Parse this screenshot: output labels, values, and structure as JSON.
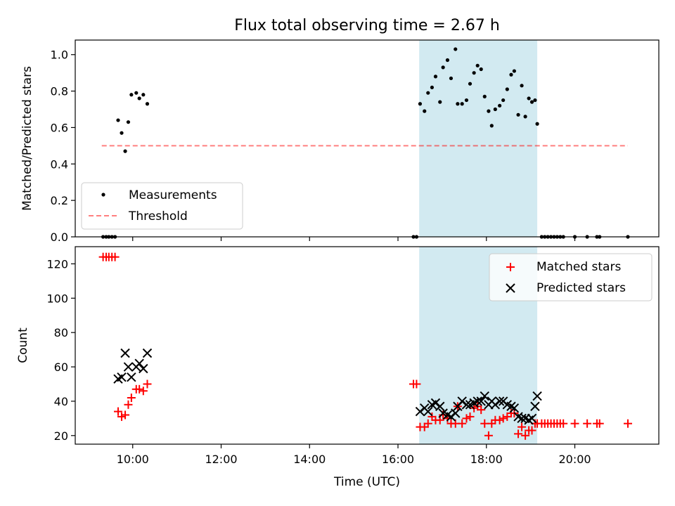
{
  "title": "Flux total observing time = 2.67 h",
  "x_axis_label": "Time (UTC)",
  "x_ticks": [
    "10:00",
    "12:00",
    "14:00",
    "16:00",
    "18:00",
    "20:00"
  ],
  "colors": {
    "shade": "#add8e6",
    "threshold": "#ff0000",
    "matched": "#ff0000",
    "predicted": "#000000",
    "measurement": "#000000"
  },
  "chart_data": [
    {
      "type": "scatter",
      "ylabel": "Matched/Predicted stars",
      "xlim": [
        8.7,
        21.9
      ],
      "ylim": [
        0,
        1.08
      ],
      "yticks": [
        "0.0",
        "0.2",
        "0.4",
        "0.6",
        "0.8",
        "1.0"
      ],
      "shaded_region": [
        16.48,
        19.15
      ],
      "legend": {
        "position": "lower-left",
        "entries": [
          "Measurements",
          "Threshold"
        ]
      },
      "threshold": {
        "name": "Threshold",
        "y": 0.5,
        "x": [
          9.3,
          21.2
        ]
      },
      "series": [
        {
          "name": "Measurements",
          "points": [
            [
              9.33,
              0.0
            ],
            [
              9.4,
              0.0
            ],
            [
              9.46,
              0.0
            ],
            [
              9.53,
              0.0
            ],
            [
              9.6,
              0.0
            ],
            [
              9.67,
              0.64
            ],
            [
              9.75,
              0.57
            ],
            [
              9.83,
              0.47
            ],
            [
              9.9,
              0.63
            ],
            [
              9.97,
              0.78
            ],
            [
              10.08,
              0.79
            ],
            [
              10.15,
              0.76
            ],
            [
              10.24,
              0.78
            ],
            [
              10.33,
              0.73
            ],
            [
              16.35,
              0.0
            ],
            [
              16.42,
              0.0
            ],
            [
              16.5,
              0.73
            ],
            [
              16.6,
              0.69
            ],
            [
              16.68,
              0.79
            ],
            [
              16.77,
              0.82
            ],
            [
              16.85,
              0.88
            ],
            [
              16.95,
              0.74
            ],
            [
              17.02,
              0.93
            ],
            [
              17.12,
              0.97
            ],
            [
              17.2,
              0.87
            ],
            [
              17.3,
              1.03
            ],
            [
              17.35,
              0.73
            ],
            [
              17.45,
              0.73
            ],
            [
              17.55,
              0.75
            ],
            [
              17.63,
              0.84
            ],
            [
              17.72,
              0.9
            ],
            [
              17.8,
              0.94
            ],
            [
              17.88,
              0.92
            ],
            [
              17.96,
              0.77
            ],
            [
              18.05,
              0.69
            ],
            [
              18.12,
              0.61
            ],
            [
              18.2,
              0.7
            ],
            [
              18.3,
              0.72
            ],
            [
              18.38,
              0.75
            ],
            [
              18.47,
              0.81
            ],
            [
              18.56,
              0.89
            ],
            [
              18.63,
              0.91
            ],
            [
              18.72,
              0.67
            ],
            [
              18.8,
              0.83
            ],
            [
              18.88,
              0.66
            ],
            [
              18.96,
              0.76
            ],
            [
              19.03,
              0.74
            ],
            [
              19.1,
              0.75
            ],
            [
              19.15,
              0.62
            ],
            [
              19.25,
              0.0
            ],
            [
              19.32,
              0.0
            ],
            [
              19.39,
              0.0
            ],
            [
              19.46,
              0.0
            ],
            [
              19.53,
              0.0
            ],
            [
              19.6,
              0.0
            ],
            [
              19.67,
              0.0
            ],
            [
              19.74,
              0.0
            ],
            [
              20.0,
              0.0
            ],
            [
              20.28,
              0.0
            ],
            [
              20.5,
              0.0
            ],
            [
              20.56,
              0.0
            ],
            [
              21.2,
              0.0
            ]
          ]
        }
      ]
    },
    {
      "type": "scatter",
      "ylabel": "Count",
      "xlim": [
        8.7,
        21.9
      ],
      "ylim": [
        15,
        130
      ],
      "yticks": [
        "20",
        "40",
        "60",
        "80",
        "100",
        "120"
      ],
      "shaded_region": [
        16.48,
        19.15
      ],
      "legend": {
        "position": "top-right",
        "entries": [
          "Matched stars",
          "Predicted stars"
        ]
      },
      "series": [
        {
          "name": "Matched stars",
          "points": [
            [
              9.33,
              124
            ],
            [
              9.4,
              124
            ],
            [
              9.46,
              124
            ],
            [
              9.53,
              124
            ],
            [
              9.6,
              124
            ],
            [
              9.67,
              34
            ],
            [
              9.75,
              31
            ],
            [
              9.83,
              32
            ],
            [
              9.9,
              38
            ],
            [
              9.97,
              42
            ],
            [
              10.08,
              47
            ],
            [
              10.15,
              47
            ],
            [
              10.24,
              46
            ],
            [
              10.33,
              50
            ],
            [
              16.35,
              50
            ],
            [
              16.42,
              50
            ],
            [
              16.5,
              25
            ],
            [
              16.6,
              25
            ],
            [
              16.68,
              27
            ],
            [
              16.77,
              31
            ],
            [
              16.85,
              29
            ],
            [
              16.95,
              29
            ],
            [
              17.02,
              32
            ],
            [
              17.12,
              30
            ],
            [
              17.2,
              27
            ],
            [
              17.3,
              27
            ],
            [
              17.35,
              37
            ],
            [
              17.45,
              27
            ],
            [
              17.55,
              30
            ],
            [
              17.63,
              31
            ],
            [
              17.72,
              36
            ],
            [
              17.8,
              37
            ],
            [
              17.88,
              35
            ],
            [
              17.96,
              27
            ],
            [
              18.05,
              20
            ],
            [
              18.12,
              27
            ],
            [
              18.2,
              29
            ],
            [
              18.3,
              29
            ],
            [
              18.38,
              30
            ],
            [
              18.47,
              31
            ],
            [
              18.56,
              33
            ],
            [
              18.63,
              33
            ],
            [
              18.72,
              21
            ],
            [
              18.8,
              25
            ],
            [
              18.88,
              20
            ],
            [
              18.96,
              23
            ],
            [
              19.03,
              23
            ],
            [
              19.1,
              27
            ],
            [
              19.15,
              27
            ],
            [
              19.25,
              27
            ],
            [
              19.32,
              27
            ],
            [
              19.39,
              27
            ],
            [
              19.46,
              27
            ],
            [
              19.53,
              27
            ],
            [
              19.6,
              27
            ],
            [
              19.67,
              27
            ],
            [
              19.74,
              27
            ],
            [
              20.0,
              27
            ],
            [
              20.28,
              27
            ],
            [
              20.5,
              27
            ],
            [
              20.56,
              27
            ],
            [
              21.2,
              27
            ]
          ]
        },
        {
          "name": "Predicted stars",
          "points": [
            [
              9.67,
              53
            ],
            [
              9.75,
              54
            ],
            [
              9.83,
              68
            ],
            [
              9.9,
              60
            ],
            [
              9.97,
              54
            ],
            [
              10.08,
              60
            ],
            [
              10.15,
              62
            ],
            [
              10.24,
              59
            ],
            [
              10.33,
              68
            ],
            [
              16.5,
              34
            ],
            [
              16.6,
              36
            ],
            [
              16.68,
              34
            ],
            [
              16.77,
              38
            ],
            [
              16.85,
              39
            ],
            [
              16.95,
              37
            ],
            [
              17.02,
              33
            ],
            [
              17.12,
              32
            ],
            [
              17.2,
              31
            ],
            [
              17.3,
              33
            ],
            [
              17.35,
              37
            ],
            [
              17.45,
              40
            ],
            [
              17.55,
              38
            ],
            [
              17.63,
              38
            ],
            [
              17.72,
              39
            ],
            [
              17.8,
              40
            ],
            [
              17.88,
              40
            ],
            [
              17.96,
              43
            ],
            [
              18.05,
              38
            ],
            [
              18.12,
              40
            ],
            [
              18.2,
              38
            ],
            [
              18.3,
              40
            ],
            [
              18.38,
              40
            ],
            [
              18.47,
              38
            ],
            [
              18.56,
              37
            ],
            [
              18.63,
              36
            ],
            [
              18.72,
              31
            ],
            [
              18.8,
              30
            ],
            [
              18.88,
              30
            ],
            [
              18.96,
              29
            ],
            [
              19.03,
              30
            ],
            [
              19.1,
              37
            ],
            [
              19.15,
              43
            ]
          ]
        }
      ]
    }
  ]
}
